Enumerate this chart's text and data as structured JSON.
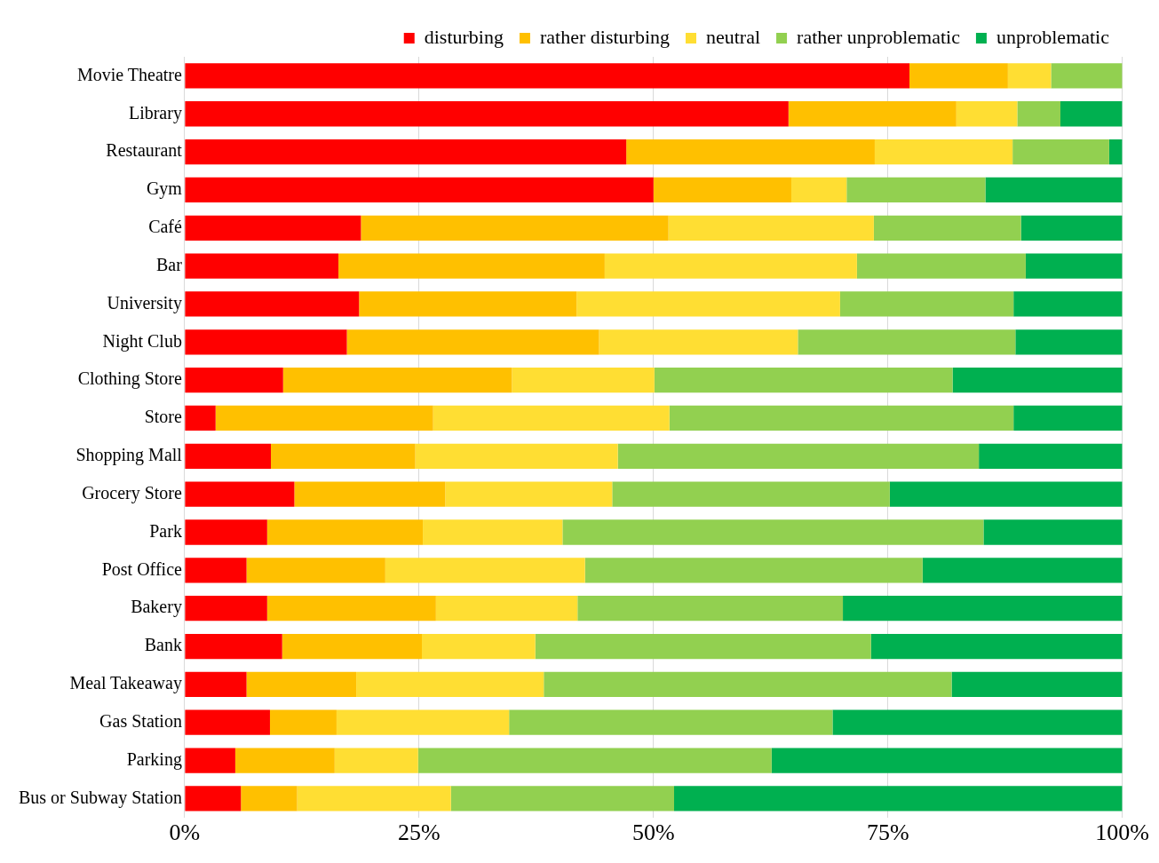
{
  "chart_data": {
    "type": "bar",
    "orientation": "horizontal",
    "stacked": true,
    "categories": [
      "Movie Theatre",
      "Library",
      "Restaurant",
      "Gym",
      "Café",
      "Bar",
      "University",
      "Night Club",
      "Clothing Store",
      "Store",
      "Shopping Mall",
      "Grocery Store",
      "Park",
      "Post Office",
      "Bakery",
      "Bank",
      "Meal Takeaway",
      "Gas Station",
      "Parking",
      "Bus or Subway Station"
    ],
    "series": [
      {
        "name": "disturbing",
        "color": "#ff0000",
        "values": [
          77.3,
          64.4,
          47.1,
          50,
          18.8,
          16.4,
          18.6,
          17.3,
          10.5,
          3.3,
          9.2,
          11.7,
          8.8,
          6.6,
          8.8,
          10.4,
          6.6,
          9.1,
          5.4,
          6.0
        ]
      },
      {
        "name": "rather disturbing",
        "color": "#ffc000",
        "values": [
          10.5,
          17.9,
          26.5,
          14.7,
          32.8,
          28.4,
          23.2,
          26.9,
          24.4,
          23.2,
          15.4,
          16.1,
          16.6,
          14.8,
          18.0,
          14.9,
          11.7,
          7.1,
          10.6,
          6.0
        ]
      },
      {
        "name": "neutral",
        "color": "#ffde33",
        "values": [
          4.6,
          6.5,
          14.7,
          5.9,
          21.9,
          26.9,
          28.1,
          21.2,
          15.2,
          25.2,
          21.6,
          17.8,
          14.9,
          21.3,
          15.1,
          12.1,
          20.0,
          18.4,
          8.9,
          16.4
        ]
      },
      {
        "name": "rather unproblematic",
        "color": "#92d050",
        "values": [
          7.6,
          4.6,
          10.3,
          14.8,
          15.7,
          18.0,
          18.5,
          23.2,
          31.8,
          36.7,
          38.5,
          29.6,
          44.9,
          36.0,
          28.3,
          35.8,
          43.5,
          34.5,
          37.7,
          23.8
        ]
      },
      {
        "name": "unproblematic",
        "color": "#00b050",
        "values": [
          0,
          6.6,
          1.4,
          14.6,
          10.8,
          10.3,
          11.6,
          11.4,
          18.1,
          11.6,
          15.3,
          24.8,
          14.8,
          21.3,
          29.8,
          26.8,
          18.2,
          30.9,
          37.4,
          47.8
        ]
      }
    ],
    "xlim": [
      0,
      100
    ],
    "xticks": [
      {
        "value": 0,
        "label": "0%"
      },
      {
        "value": 25,
        "label": "25%"
      },
      {
        "value": 50,
        "label": "50%"
      },
      {
        "value": 75,
        "label": "75%"
      },
      {
        "value": 100,
        "label": "100%"
      }
    ],
    "grid": "x",
    "legend": "top right"
  }
}
